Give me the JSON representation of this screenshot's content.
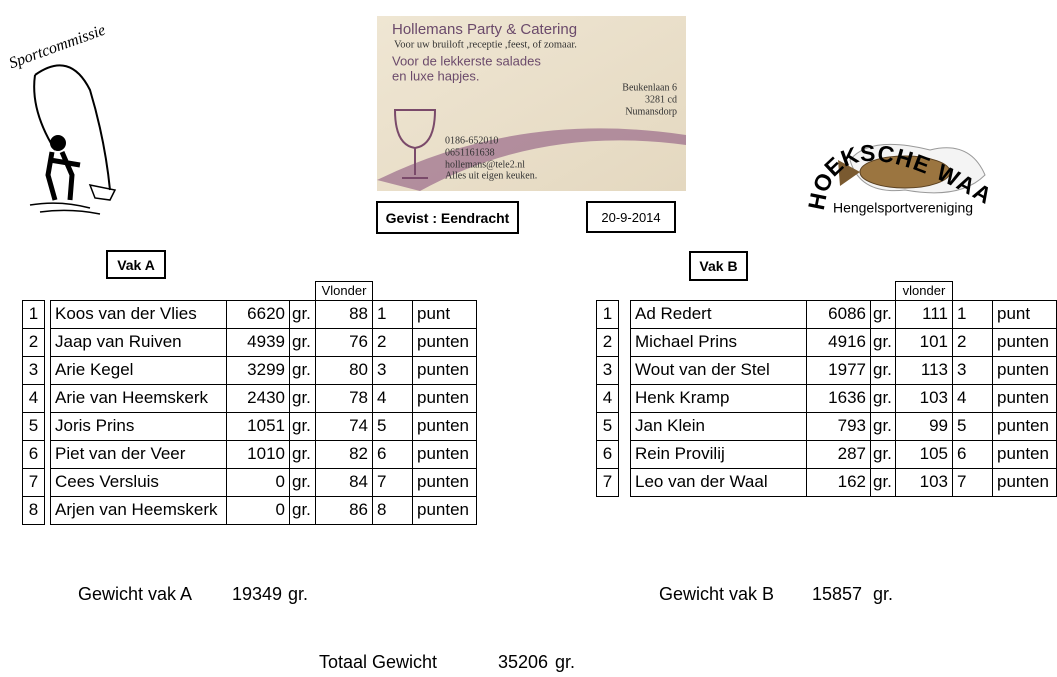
{
  "logos": {
    "left": "Sportcommissie",
    "right_title": "HOEKSCHE WAARD",
    "right_subtitle": "Hengelsportvereniging"
  },
  "card": {
    "title": "Hollemans Party & Catering",
    "tagline": "Voor uw bruiloft ,receptie ,feest, of zomaar.",
    "slogan": [
      "Voor de lekkerste salades",
      "en luxe hapjes."
    ],
    "address": [
      "Beukenlaan 6",
      "3281 cd",
      "Numansdorp"
    ],
    "contact": [
      "0186-652010",
      "0651161638",
      "hollemans@tele2.nl",
      "Alles uit eigen keuken."
    ]
  },
  "info": {
    "location": "Gevist : Eendracht",
    "date": "20-9-2014"
  },
  "sections": [
    {
      "label": "Vak A",
      "column_header": "Vlonder",
      "rows": [
        [
          1,
          "Koos van der Vlies",
          6620,
          "gr.",
          88,
          1,
          "punt"
        ],
        [
          2,
          "Jaap van Ruiven",
          4939,
          "gr.",
          76,
          2,
          "punten"
        ],
        [
          3,
          "Arie Kegel",
          3299,
          "gr.",
          80,
          3,
          "punten"
        ],
        [
          4,
          "Arie van Heemskerk",
          2430,
          "gr.",
          78,
          4,
          "punten"
        ],
        [
          5,
          "Joris Prins",
          1051,
          "gr.",
          74,
          5,
          "punten"
        ],
        [
          6,
          "Piet van der Veer",
          1010,
          "gr.",
          82,
          6,
          "punten"
        ],
        [
          7,
          "Cees Versluis",
          0,
          "gr.",
          84,
          7,
          "punten"
        ],
        [
          8,
          "Arjen van Heemskerk",
          0,
          "gr.",
          86,
          8,
          "punten"
        ]
      ]
    },
    {
      "label": "Vak B",
      "column_header": "vlonder",
      "rows": [
        [
          1,
          "Ad Redert",
          6086,
          "gr.",
          111,
          1,
          "punt"
        ],
        [
          2,
          "Michael Prins",
          4916,
          "gr.",
          101,
          2,
          "punten"
        ],
        [
          3,
          "Wout van der Stel",
          1977,
          "gr.",
          113,
          3,
          "punten"
        ],
        [
          4,
          "Henk Kramp",
          1636,
          "gr.",
          103,
          4,
          "punten"
        ],
        [
          5,
          "Jan Klein",
          793,
          "gr.",
          99,
          5,
          "punten"
        ],
        [
          6,
          "Rein Provilij",
          287,
          "gr.",
          105,
          6,
          "punten"
        ],
        [
          7,
          "Leo van der Waal",
          162,
          "gr.",
          103,
          7,
          "punten"
        ]
      ]
    }
  ],
  "totals": [
    {
      "label": "Gewicht vak A",
      "value": 19349,
      "unit": "gr."
    },
    {
      "label": "Gewicht vak B",
      "value": 15857,
      "unit": "gr."
    },
    {
      "label": "Totaal Gewicht",
      "value": 35206,
      "unit": "gr."
    }
  ]
}
